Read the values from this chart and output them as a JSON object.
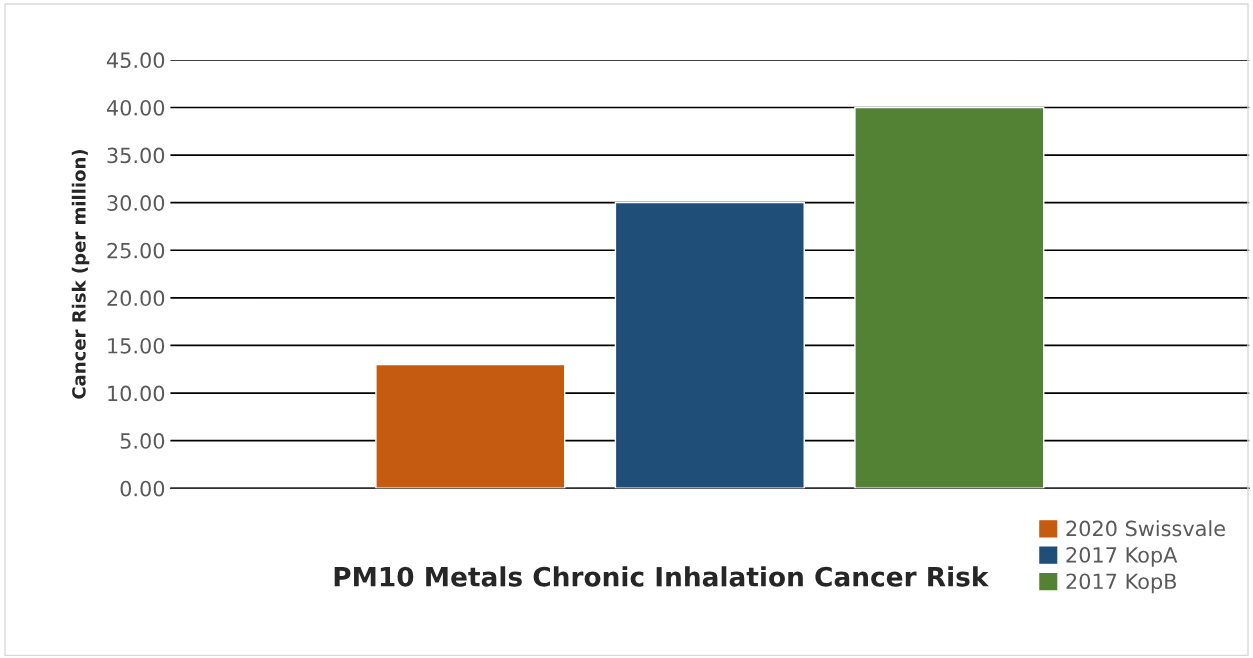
{
  "chart_data": {
    "type": "bar",
    "title": "PM10 Metals Chronic Inhalation Cancer Risk",
    "ylabel": "Cancer Risk (per million)",
    "categories": [
      null
    ],
    "series": [
      {
        "name": "2020 Swissvale",
        "color": "#c55a11",
        "values": [
          13.0
        ]
      },
      {
        "name": "2017 KopA",
        "color": "#1f4e79",
        "values": [
          30.0
        ]
      },
      {
        "name": "2017 KopB",
        "color": "#548235",
        "values": [
          40.0
        ]
      }
    ],
    "ylim": [
      0,
      45
    ],
    "yticks": [
      {
        "value": 0,
        "label": "0.00"
      },
      {
        "value": 5,
        "label": "5.00"
      },
      {
        "value": 10,
        "label": "10.00"
      },
      {
        "value": 15,
        "label": "15.00"
      },
      {
        "value": 20,
        "label": "20.00"
      },
      {
        "value": 25,
        "label": "25.00"
      },
      {
        "value": 30,
        "label": "30.00"
      },
      {
        "value": 35,
        "label": "35.00"
      },
      {
        "value": 40,
        "label": "40.00"
      },
      {
        "value": 45,
        "label": "45.00"
      }
    ],
    "grid": "y",
    "legend": "bottom right"
  }
}
